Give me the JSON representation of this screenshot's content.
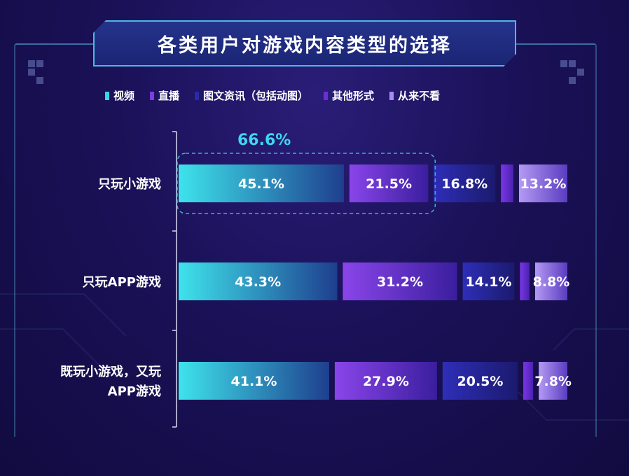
{
  "title": "各类用户对游戏内容类型的选择",
  "legend": [
    {
      "label": "视频",
      "color": "#38d6e6"
    },
    {
      "label": "直播",
      "color": "#7b3fe0"
    },
    {
      "label": "图文资讯（包括动图）",
      "color": "#2a2aa8"
    },
    {
      "label": "其他形式",
      "color": "#6a2fd8"
    },
    {
      "label": "从来不看",
      "color": "#a68cf0"
    }
  ],
  "highlight_label": "66.6%",
  "chart_data": {
    "type": "bar",
    "orientation": "horizontal",
    "stacked": true,
    "categories": [
      "只玩小游戏",
      "只玩APP游戏",
      "既玩小游戏，又玩APP游戏"
    ],
    "category_lines": [
      [
        "只玩小游戏"
      ],
      [
        "只玩APP游戏"
      ],
      [
        "既玩小游戏，又玩",
        "APP游戏"
      ]
    ],
    "series": [
      {
        "name": "视频",
        "values": [
          45.1,
          43.3,
          41.1
        ],
        "labels": [
          "45.1%",
          "43.3%",
          "41.1%"
        ]
      },
      {
        "name": "直播",
        "values": [
          21.5,
          31.2,
          27.9
        ],
        "labels": [
          "21.5%",
          "31.2%",
          "27.9%"
        ]
      },
      {
        "name": "图文资讯（包括动图）",
        "values": [
          16.8,
          14.1,
          20.5
        ],
        "labels": [
          "16.8%",
          "14.1%",
          "20.5%"
        ]
      },
      {
        "name": "其他形式",
        "values": [
          3.4,
          2.6,
          2.7
        ],
        "labels": [
          "",
          "",
          ""
        ]
      },
      {
        "name": "从来不看",
        "values": [
          13.2,
          8.8,
          7.8
        ],
        "labels": [
          "13.2%",
          "8.8%",
          "7.8%"
        ]
      }
    ],
    "highlight": {
      "category": "只玩小游戏",
      "series": [
        "视频",
        "直播"
      ],
      "value": 66.6
    }
  }
}
